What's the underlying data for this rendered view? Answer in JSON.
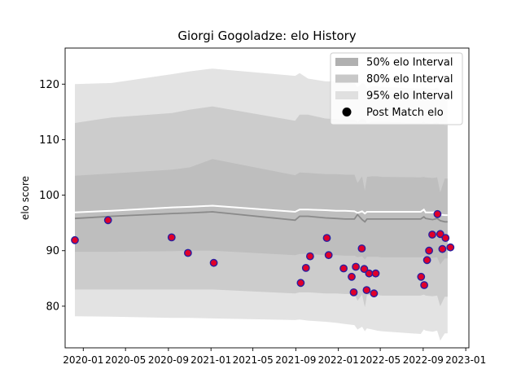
{
  "chart_data": {
    "type": "scatter",
    "title": "Giorgi Gogoladze: elo History",
    "xlabel": "",
    "ylabel": "elo score",
    "xlim": [
      "2019-11-10",
      "2023-01-10"
    ],
    "ylim": [
      72.5,
      126.5
    ],
    "grid": false,
    "legend_position": "top-right",
    "x_ticks": [
      "2020-01",
      "2020-05",
      "2020-09",
      "2021-01",
      "2021-05",
      "2021-09",
      "2022-01",
      "2022-05",
      "2022-09",
      "2023-01"
    ],
    "y_ticks": [
      80,
      90,
      100,
      110,
      120
    ],
    "legend": [
      {
        "label": "50% elo Interval",
        "kind": "patch",
        "color": "#b0b0b0"
      },
      {
        "label": "80% elo Interval",
        "kind": "patch",
        "color": "#c8c8c8"
      },
      {
        "label": "95% elo Interval",
        "kind": "patch",
        "color": "#e0e0e0"
      },
      {
        "label": "Post Match elo",
        "kind": "marker",
        "color": "#000000"
      }
    ],
    "colors": {
      "band95": "#e3e3e3",
      "band80": "#cccccc",
      "band50": "#bebebe",
      "mean_line": "#8a8a8a",
      "upper_line": "#ffffff",
      "marker_fill": "#e0002a",
      "marker_edge": "#2a1fa0"
    },
    "bands": {
      "x": [
        "2019-12-08",
        "2020-03-22",
        "2020-09-12",
        "2020-11-01",
        "2021-01-05",
        "2021-08-30",
        "2021-09-12",
        "2021-10-06",
        "2021-11-25",
        "2021-12-25",
        "2022-01-20",
        "2022-02-16",
        "2022-02-25",
        "2022-03-10",
        "2022-03-18",
        "2022-03-24",
        "2022-04-08",
        "2022-04-22",
        "2022-05-05",
        "2022-08-25",
        "2022-09-03",
        "2022-09-08",
        "2022-09-28",
        "2022-10-11",
        "2022-10-20",
        "2022-11-02",
        "2022-11-10"
      ],
      "p95_upper": [
        120.0,
        120.2,
        121.8,
        122.3,
        122.8,
        121.5,
        122.0,
        121.0,
        120.5,
        120.5,
        120.3,
        120.1,
        119.5,
        120.2,
        120.0,
        119.2,
        119.6,
        119.6,
        119.5,
        119.2,
        119.5,
        119.3,
        119.1,
        119.4,
        118.8,
        118.6,
        118.6
      ],
      "p80_upper": [
        113.0,
        114.0,
        114.8,
        115.4,
        116.0,
        113.4,
        114.5,
        114.5,
        113.8,
        113.7,
        113.6,
        113.6,
        113.2,
        113.8,
        113.6,
        113.0,
        113.2,
        113.2,
        113.2,
        113.0,
        113.2,
        113.0,
        112.9,
        113.1,
        112.7,
        112.6,
        112.6
      ],
      "p50_upper": [
        103.5,
        103.9,
        104.6,
        105.0,
        106.5,
        103.6,
        104.1,
        104.0,
        103.8,
        103.8,
        103.7,
        103.7,
        102.2,
        103.4,
        100.8,
        103.3,
        103.4,
        103.4,
        103.3,
        103.2,
        103.3,
        103.2,
        103.1,
        103.2,
        100.5,
        103.0,
        103.0
      ],
      "upper_line": [
        96.9,
        97.2,
        97.8,
        97.9,
        98.1,
        97.0,
        97.4,
        97.4,
        97.3,
        97.2,
        97.2,
        97.1,
        96.8,
        97.1,
        96.7,
        97.0,
        97.0,
        97.0,
        97.0,
        97.0,
        97.4,
        96.9,
        96.9,
        97.0,
        96.5,
        96.4,
        96.4
      ],
      "mean": [
        95.8,
        96.2,
        96.7,
        96.8,
        97.0,
        95.5,
        96.2,
        96.2,
        95.9,
        95.8,
        95.7,
        95.7,
        96.5,
        95.6,
        95.2,
        95.7,
        95.7,
        95.7,
        95.7,
        95.7,
        96.1,
        95.8,
        95.6,
        95.8,
        95.4,
        95.2,
        95.2
      ],
      "p50_lower": [
        89.8,
        89.8,
        89.9,
        90.0,
        90.0,
        89.2,
        89.4,
        89.4,
        89.2,
        89.2,
        89.1,
        89.1,
        88.8,
        89.0,
        88.4,
        88.9,
        88.9,
        88.9,
        88.8,
        88.8,
        89.0,
        88.8,
        88.7,
        88.8,
        87.5,
        88.6,
        88.6
      ],
      "p80_lower": [
        83.0,
        83.0,
        83.0,
        83.0,
        83.0,
        82.3,
        82.5,
        82.5,
        82.3,
        82.3,
        82.2,
        82.2,
        81.0,
        82.1,
        79.8,
        82.0,
        82.0,
        82.0,
        81.9,
        81.9,
        82.1,
        81.9,
        81.8,
        81.9,
        80.0,
        81.7,
        81.7
      ],
      "p95_lower": [
        78.2,
        78.1,
        77.9,
        77.9,
        77.8,
        77.5,
        77.6,
        77.4,
        77.2,
        77.0,
        76.8,
        76.6,
        75.8,
        76.3,
        75.5,
        76.0,
        75.8,
        75.6,
        75.5,
        75.0,
        75.8,
        75.6,
        75.4,
        75.6,
        73.8,
        75.1,
        75.1
      ]
    },
    "points": [
      {
        "x": "2019-12-08",
        "y": 91.9
      },
      {
        "x": "2020-03-12",
        "y": 95.5
      },
      {
        "x": "2020-09-10",
        "y": 92.4
      },
      {
        "x": "2020-10-27",
        "y": 89.6
      },
      {
        "x": "2021-01-09",
        "y": 87.8
      },
      {
        "x": "2021-09-15",
        "y": 84.2
      },
      {
        "x": "2021-09-30",
        "y": 86.9
      },
      {
        "x": "2021-10-12",
        "y": 89.0
      },
      {
        "x": "2021-11-29",
        "y": 92.3
      },
      {
        "x": "2021-12-04",
        "y": 89.2
      },
      {
        "x": "2022-01-16",
        "y": 86.8
      },
      {
        "x": "2022-02-08",
        "y": 85.3
      },
      {
        "x": "2022-02-14",
        "y": 82.5
      },
      {
        "x": "2022-02-20",
        "y": 87.1
      },
      {
        "x": "2022-03-09",
        "y": 90.4
      },
      {
        "x": "2022-03-16",
        "y": 86.7
      },
      {
        "x": "2022-03-23",
        "y": 82.9
      },
      {
        "x": "2022-03-30",
        "y": 85.9
      },
      {
        "x": "2022-04-13",
        "y": 82.3
      },
      {
        "x": "2022-04-18",
        "y": 85.9
      },
      {
        "x": "2022-08-26",
        "y": 85.3
      },
      {
        "x": "2022-09-04",
        "y": 83.8
      },
      {
        "x": "2022-09-12",
        "y": 88.3
      },
      {
        "x": "2022-09-18",
        "y": 90.0
      },
      {
        "x": "2022-09-27",
        "y": 92.9
      },
      {
        "x": "2022-10-12",
        "y": 96.6
      },
      {
        "x": "2022-10-20",
        "y": 93.0
      },
      {
        "x": "2022-10-26",
        "y": 90.3
      },
      {
        "x": "2022-11-04",
        "y": 92.3
      },
      {
        "x": "2022-11-18",
        "y": 90.6
      }
    ]
  }
}
